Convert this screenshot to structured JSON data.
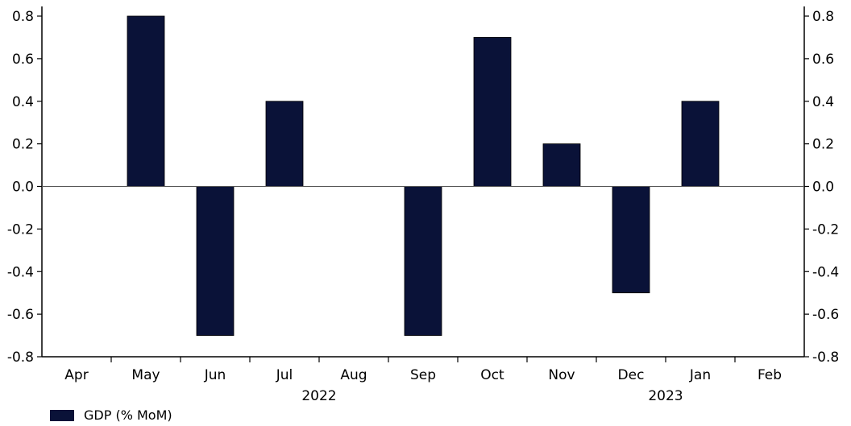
{
  "chart_data": {
    "type": "bar",
    "categories": [
      "Apr",
      "May",
      "Jun",
      "Jul",
      "Aug",
      "Sep",
      "Oct",
      "Nov",
      "Dec",
      "Jan",
      "Feb"
    ],
    "series": [
      {
        "name": "GDP (% MoM)",
        "values": [
          0.0,
          0.8,
          -0.7,
          0.4,
          0.0,
          -0.7,
          0.7,
          0.2,
          -0.5,
          0.4,
          0.0
        ]
      }
    ],
    "year_labels": [
      {
        "label": "2022",
        "after_category": "Jul"
      },
      {
        "label": "2023",
        "after_category": "Dec"
      }
    ],
    "ylim": [
      -0.8,
      0.8
    ],
    "yticks": [
      "0.8",
      "0.6",
      "0.4",
      "0.2",
      "0.0",
      "-0.2",
      "-0.4",
      "-0.6",
      "-0.8"
    ],
    "ytick_values": [
      0.8,
      0.6,
      0.4,
      0.2,
      0.0,
      -0.2,
      -0.4,
      -0.6,
      -0.8
    ],
    "grid": false,
    "secondary_y_axis": true,
    "legend_position": "bottom-left",
    "bar_color": "#0a1238"
  }
}
